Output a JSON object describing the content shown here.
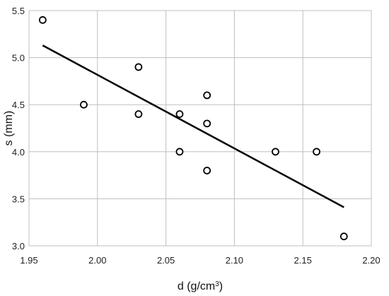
{
  "chart_data": {
    "type": "scatter",
    "title": "",
    "xlabel": "d (g/cm",
    "xlabel_sup": "3",
    "xlabel_suffix": ")",
    "ylabel": "s (mm)",
    "xlim": [
      1.95,
      2.2
    ],
    "ylim": [
      3.0,
      5.5
    ],
    "x_ticks": [
      "1.95",
      "2.00",
      "2.05",
      "2.10",
      "2.15",
      "2.20"
    ],
    "y_ticks": [
      "3.0",
      "3.5",
      "4.0",
      "4.5",
      "5.0",
      "5.5"
    ],
    "grid": true,
    "series": [
      {
        "marker": "open-circle",
        "points": [
          {
            "x": 1.96,
            "y": 5.4
          },
          {
            "x": 1.99,
            "y": 4.5
          },
          {
            "x": 2.03,
            "y": 4.9
          },
          {
            "x": 2.03,
            "y": 4.4
          },
          {
            "x": 2.06,
            "y": 4.4
          },
          {
            "x": 2.06,
            "y": 4.0
          },
          {
            "x": 2.08,
            "y": 4.6
          },
          {
            "x": 2.08,
            "y": 4.3
          },
          {
            "x": 2.08,
            "y": 3.8
          },
          {
            "x": 2.13,
            "y": 4.0
          },
          {
            "x": 2.16,
            "y": 4.0
          },
          {
            "x": 2.18,
            "y": 3.1
          }
        ]
      }
    ],
    "trendline": {
      "type": "linear",
      "from": {
        "x": 1.96,
        "y": 5.13
      },
      "to": {
        "x": 2.18,
        "y": 3.41
      }
    },
    "colors": {
      "grid": "#bfbfbf",
      "marker_stroke": "#000000",
      "trendline": "#000000"
    }
  }
}
